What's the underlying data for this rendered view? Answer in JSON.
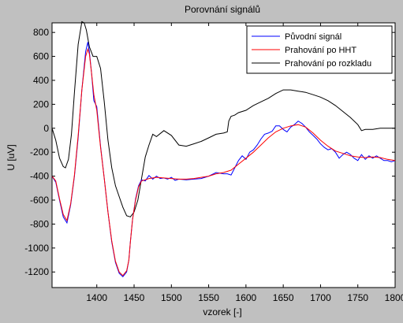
{
  "chart_data": {
    "type": "line",
    "title": "Porovnání signálů",
    "xlabel": "vzorek [-]",
    "ylabel": "U [uV]",
    "xlim": [
      1340,
      1800
    ],
    "ylim": [
      -1330,
      880
    ],
    "xticks": [
      1400,
      1450,
      1500,
      1550,
      1600,
      1650,
      1700,
      1750,
      1800
    ],
    "xtick_labels": [
      "1400",
      "1450",
      "1500",
      "1550",
      "1600",
      "1650",
      "1700",
      "1750",
      "1800"
    ],
    "yticks": [
      800,
      600,
      400,
      200,
      0,
      -200,
      -400,
      -600,
      -800,
      -1000,
      -1200
    ],
    "ytick_labels": [
      "800",
      "600",
      "400",
      "200",
      "0",
      "-200",
      "-400",
      "-600",
      "-800",
      "-1000",
      "-1200"
    ],
    "extra_xtick_labels": [],
    "grid": false,
    "legend_position": "top-right",
    "series": [
      {
        "name": "Původní signál",
        "color": "#0000ff",
        "x": [
          1340,
          1345,
          1350,
          1355,
          1360,
          1365,
          1370,
          1375,
          1380,
          1385,
          1388,
          1390,
          1393,
          1396,
          1400,
          1405,
          1410,
          1415,
          1420,
          1425,
          1430,
          1435,
          1440,
          1443,
          1445,
          1448,
          1452,
          1456,
          1460,
          1465,
          1470,
          1475,
          1480,
          1485,
          1490,
          1495,
          1500,
          1505,
          1510,
          1520,
          1530,
          1540,
          1550,
          1560,
          1570,
          1575,
          1580,
          1585,
          1590,
          1595,
          1600,
          1605,
          1610,
          1615,
          1620,
          1625,
          1630,
          1635,
          1640,
          1645,
          1650,
          1655,
          1660,
          1665,
          1670,
          1675,
          1680,
          1685,
          1690,
          1695,
          1700,
          1705,
          1710,
          1715,
          1720,
          1725,
          1730,
          1735,
          1740,
          1745,
          1750,
          1755,
          1760,
          1765,
          1770,
          1775,
          1780,
          1785,
          1790,
          1795,
          1800
        ],
        "y": [
          -400,
          -450,
          -600,
          -740,
          -790,
          -640,
          -400,
          -80,
          320,
          640,
          720,
          640,
          460,
          230,
          180,
          -150,
          -420,
          -700,
          -950,
          -1120,
          -1210,
          -1240,
          -1200,
          -1100,
          -950,
          -760,
          -590,
          -480,
          -430,
          -440,
          -395,
          -425,
          -400,
          -420,
          -415,
          -425,
          -410,
          -435,
          -425,
          -430,
          -425,
          -420,
          -400,
          -370,
          -380,
          -380,
          -390,
          -330,
          -270,
          -230,
          -260,
          -200,
          -180,
          -140,
          -90,
          -50,
          -40,
          -25,
          20,
          20,
          -10,
          -30,
          10,
          30,
          60,
          40,
          10,
          -30,
          -60,
          -90,
          -130,
          -160,
          -180,
          -170,
          -200,
          -250,
          -220,
          -200,
          -220,
          -250,
          -270,
          -220,
          -260,
          -230,
          -250,
          -230,
          -250,
          -270,
          -270,
          -280,
          -270
        ]
      },
      {
        "name": "Prahování po HHT",
        "color": "#ff0000",
        "x": [
          1340,
          1345,
          1350,
          1355,
          1360,
          1365,
          1370,
          1375,
          1380,
          1385,
          1388,
          1390,
          1393,
          1396,
          1400,
          1405,
          1410,
          1415,
          1420,
          1425,
          1430,
          1435,
          1440,
          1443,
          1445,
          1448,
          1452,
          1456,
          1460,
          1465,
          1470,
          1480,
          1490,
          1500,
          1510,
          1520,
          1530,
          1540,
          1550,
          1560,
          1570,
          1580,
          1590,
          1600,
          1610,
          1620,
          1630,
          1640,
          1650,
          1660,
          1670,
          1680,
          1690,
          1700,
          1710,
          1720,
          1730,
          1740,
          1750,
          1760,
          1770,
          1780,
          1790,
          1800
        ],
        "y": [
          -400,
          -440,
          -590,
          -720,
          -770,
          -630,
          -390,
          -60,
          320,
          600,
          660,
          620,
          460,
          280,
          150,
          -160,
          -420,
          -700,
          -940,
          -1110,
          -1200,
          -1230,
          -1190,
          -1100,
          -950,
          -760,
          -600,
          -490,
          -440,
          -430,
          -420,
          -410,
          -415,
          -420,
          -425,
          -425,
          -420,
          -410,
          -400,
          -380,
          -370,
          -350,
          -300,
          -250,
          -200,
          -140,
          -80,
          -30,
          0,
          20,
          30,
          10,
          -40,
          -100,
          -150,
          -190,
          -210,
          -230,
          -240,
          -245,
          -240,
          -245,
          -260,
          -270
        ]
      },
      {
        "name": "Prahování po rozkladu",
        "color": "#000000",
        "x": [
          1340,
          1345,
          1350,
          1355,
          1358,
          1362,
          1366,
          1370,
          1375,
          1380,
          1383,
          1386,
          1390,
          1395,
          1400,
          1405,
          1410,
          1415,
          1420,
          1425,
          1430,
          1435,
          1440,
          1445,
          1450,
          1455,
          1460,
          1465,
          1470,
          1475,
          1480,
          1490,
          1500,
          1510,
          1520,
          1530,
          1540,
          1550,
          1560,
          1570,
          1575,
          1577,
          1580,
          1585,
          1590,
          1600,
          1610,
          1620,
          1630,
          1640,
          1650,
          1660,
          1670,
          1680,
          1690,
          1700,
          1710,
          1720,
          1730,
          1740,
          1750,
          1755,
          1760,
          1770,
          1780,
          1790,
          1800
        ],
        "y": [
          0,
          -100,
          -250,
          -320,
          -330,
          -260,
          -50,
          300,
          700,
          890,
          880,
          820,
          680,
          600,
          600,
          500,
          220,
          -100,
          -330,
          -480,
          -570,
          -660,
          -730,
          -740,
          -700,
          -600,
          -420,
          -240,
          -140,
          -50,
          -70,
          -20,
          -60,
          -140,
          -150,
          -130,
          -110,
          -80,
          -50,
          -40,
          -30,
          60,
          100,
          110,
          130,
          150,
          190,
          220,
          250,
          290,
          320,
          320,
          310,
          300,
          280,
          260,
          230,
          190,
          140,
          90,
          30,
          -20,
          -10,
          -10,
          0,
          0,
          0
        ]
      }
    ]
  }
}
